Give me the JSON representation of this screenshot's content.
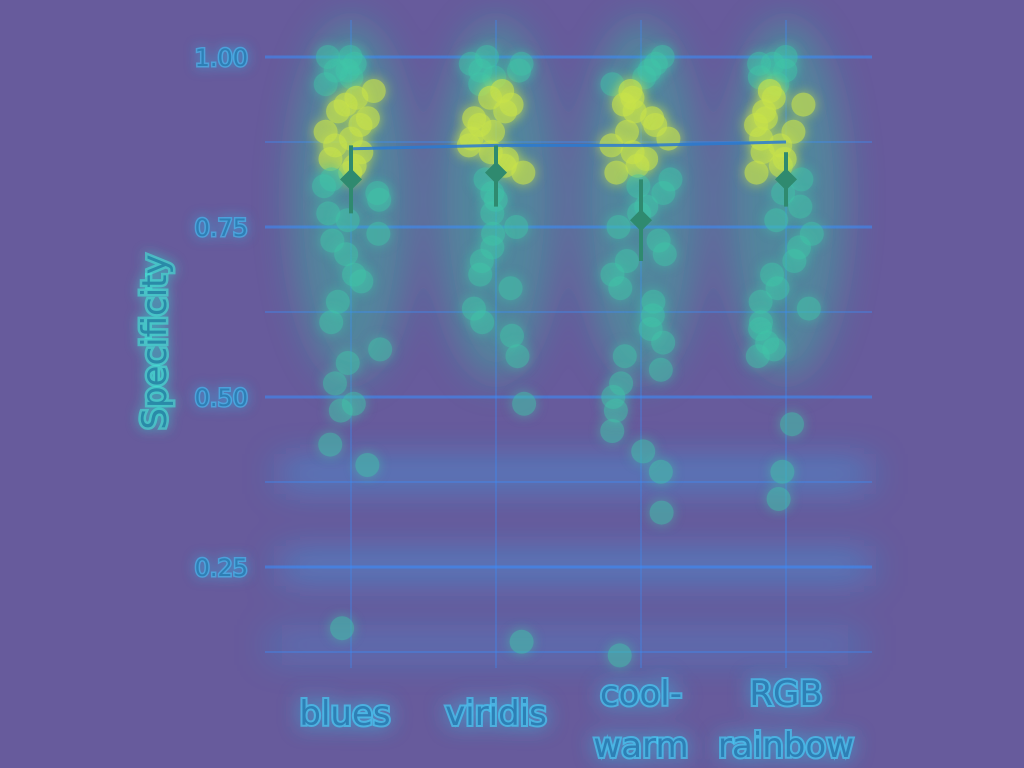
{
  "chart_data": {
    "type": "scatter",
    "ylabel": "Specificity",
    "xlabel": "",
    "categories": [
      "blues",
      "viridis",
      "cool-\nwarm",
      "RGB\nrainbow"
    ],
    "ylim": [
      0.12,
      1.06
    ],
    "yticks": [
      0.25,
      0.5,
      0.75,
      1.0
    ],
    "ytick_labels": [
      "0.25",
      "0.50",
      "0.75",
      "1.00"
    ],
    "grid": true,
    "series": [
      {
        "values": [
          [
            1.0,
            0.99,
            1.0,
            0.98,
            0.98,
            0.97,
            0.96,
            0.95,
            0.94,
            0.93,
            0.92,
            0.91,
            0.9,
            0.89,
            0.88,
            0.87,
            0.86,
            0.85,
            0.84,
            0.83,
            0.82,
            0.81,
            0.8,
            0.79,
            0.77,
            0.76,
            0.74,
            0.73,
            0.71,
            0.68,
            0.67,
            0.64,
            0.61,
            0.57,
            0.55,
            0.52,
            0.49,
            0.48,
            0.43,
            0.4,
            0.16
          ],
          [
            1.0,
            0.99,
            0.99,
            0.98,
            0.98,
            0.97,
            0.96,
            0.95,
            0.94,
            0.93,
            0.92,
            0.91,
            0.9,
            0.89,
            0.88,
            0.87,
            0.86,
            0.85,
            0.84,
            0.83,
            0.82,
            0.8,
            0.79,
            0.77,
            0.75,
            0.74,
            0.72,
            0.7,
            0.68,
            0.66,
            0.63,
            0.61,
            0.59,
            0.56,
            0.49,
            0.14
          ],
          [
            1.0,
            0.99,
            0.98,
            0.97,
            0.96,
            0.95,
            0.94,
            0.93,
            0.92,
            0.91,
            0.9,
            0.89,
            0.88,
            0.87,
            0.86,
            0.85,
            0.84,
            0.83,
            0.82,
            0.81,
            0.8,
            0.78,
            0.77,
            0.75,
            0.73,
            0.71,
            0.7,
            0.68,
            0.66,
            0.64,
            0.62,
            0.6,
            0.58,
            0.56,
            0.54,
            0.52,
            0.5,
            0.48,
            0.45,
            0.42,
            0.39,
            0.33,
            0.12
          ],
          [
            1.0,
            0.99,
            0.99,
            0.98,
            0.97,
            0.96,
            0.95,
            0.94,
            0.93,
            0.92,
            0.91,
            0.9,
            0.89,
            0.88,
            0.87,
            0.86,
            0.85,
            0.84,
            0.83,
            0.82,
            0.8,
            0.78,
            0.76,
            0.74,
            0.72,
            0.7,
            0.68,
            0.66,
            0.64,
            0.63,
            0.61,
            0.6,
            0.58,
            0.57,
            0.56,
            0.46,
            0.39,
            0.35
          ]
        ]
      }
    ],
    "means": [
      0.82,
      0.83,
      0.76,
      0.82
    ],
    "ci_low": [
      0.77,
      0.78,
      0.7,
      0.78
    ],
    "ci_high": [
      0.87,
      0.87,
      0.82,
      0.86
    ],
    "trend_line": [
      0.865,
      0.87,
      0.87,
      0.875
    ],
    "colors": {
      "background": "#675b9c",
      "grid": "#3a8fff",
      "point": "#3fc7a8",
      "point_hot": "#c9e34a",
      "mean_marker": "#2f8a6f",
      "trend_line": "#2a7ad1"
    }
  }
}
